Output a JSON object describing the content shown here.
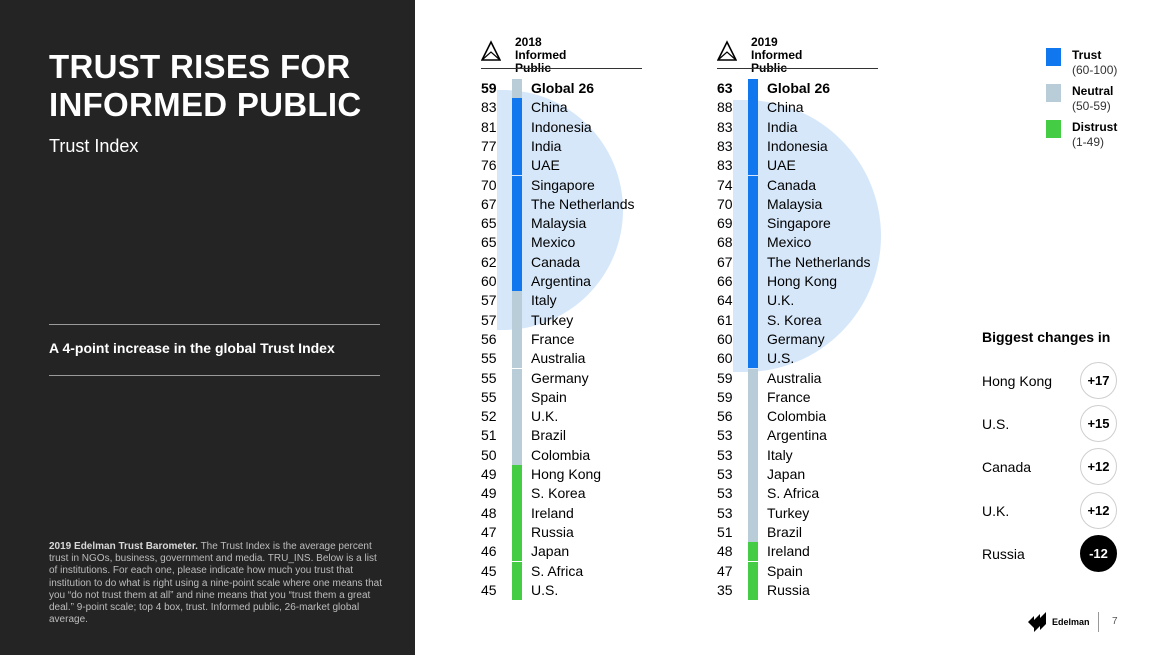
{
  "left_panel": {
    "title": "TRUST RISES FOR INFORMED PUBLIC",
    "subtitle": "Trust Index",
    "callout": "A 4-point increase in the global Trust Index",
    "note_bold": "2019 Edelman Trust Barometer.",
    "note": " The Trust Index is the average percent trust in NGOs, business, government and media. TRU_INS. Below is a list of institutions. For each one, please indicate how much you trust that institution to do what is right using a nine-point scale where one means that you “do not trust them at all” and nine means that you “trust them a great deal.” 9-point scale; top 4 box, trust. Informed public, 26-market global average."
  },
  "colors": {
    "trust": "#1177ee",
    "neutral": "#b9cdd9",
    "distrust": "#44cc44",
    "highlight": "#d6e7fa",
    "dark_panel": "#242424"
  },
  "chart_data": [
    {
      "type": "table",
      "year": "2018",
      "subtitle": "Informed Public",
      "rows": [
        {
          "score": 59,
          "country": "Global 26",
          "category": "neutral"
        },
        {
          "score": 83,
          "country": "China",
          "category": "trust"
        },
        {
          "score": 81,
          "country": "Indonesia",
          "category": "trust"
        },
        {
          "score": 77,
          "country": "India",
          "category": "trust"
        },
        {
          "score": 76,
          "country": "UAE",
          "category": "trust"
        },
        {
          "score": 70,
          "country": "Singapore",
          "category": "trust"
        },
        {
          "score": 67,
          "country": "The Netherlands",
          "category": "trust"
        },
        {
          "score": 65,
          "country": "Malaysia",
          "category": "trust"
        },
        {
          "score": 65,
          "country": "Mexico",
          "category": "trust"
        },
        {
          "score": 62,
          "country": "Canada",
          "category": "trust"
        },
        {
          "score": 60,
          "country": "Argentina",
          "category": "trust"
        },
        {
          "score": 57,
          "country": "Italy",
          "category": "neutral"
        },
        {
          "score": 57,
          "country": "Turkey",
          "category": "neutral"
        },
        {
          "score": 56,
          "country": "France",
          "category": "neutral"
        },
        {
          "score": 55,
          "country": "Australia",
          "category": "neutral"
        },
        {
          "score": 55,
          "country": "Germany",
          "category": "neutral"
        },
        {
          "score": 55,
          "country": "Spain",
          "category": "neutral"
        },
        {
          "score": 52,
          "country": "U.K.",
          "category": "neutral"
        },
        {
          "score": 51,
          "country": "Brazil",
          "category": "neutral"
        },
        {
          "score": 50,
          "country": "Colombia",
          "category": "neutral"
        },
        {
          "score": 49,
          "country": "Hong Kong",
          "category": "distrust"
        },
        {
          "score": 49,
          "country": "S. Korea",
          "category": "distrust"
        },
        {
          "score": 48,
          "country": "Ireland",
          "category": "distrust"
        },
        {
          "score": 47,
          "country": "Russia",
          "category": "distrust"
        },
        {
          "score": 46,
          "country": "Japan",
          "category": "distrust"
        },
        {
          "score": 45,
          "country": "S. Africa",
          "category": "distrust"
        },
        {
          "score": 45,
          "country": "U.S.",
          "category": "distrust"
        }
      ]
    },
    {
      "type": "table",
      "year": "2019",
      "subtitle": "Informed Public",
      "rows": [
        {
          "score": 63,
          "country": "Global 26",
          "category": "trust"
        },
        {
          "score": 88,
          "country": "China",
          "category": "trust"
        },
        {
          "score": 83,
          "country": "India",
          "category": "trust"
        },
        {
          "score": 83,
          "country": "Indonesia",
          "category": "trust"
        },
        {
          "score": 83,
          "country": "UAE",
          "category": "trust"
        },
        {
          "score": 74,
          "country": "Canada",
          "category": "trust"
        },
        {
          "score": 70,
          "country": "Malaysia",
          "category": "trust"
        },
        {
          "score": 69,
          "country": "Singapore",
          "category": "trust"
        },
        {
          "score": 68,
          "country": "Mexico",
          "category": "trust"
        },
        {
          "score": 67,
          "country": "The Netherlands",
          "category": "trust"
        },
        {
          "score": 66,
          "country": "Hong Kong",
          "category": "trust"
        },
        {
          "score": 64,
          "country": "U.K.",
          "category": "trust"
        },
        {
          "score": 61,
          "country": "S. Korea",
          "category": "trust"
        },
        {
          "score": 60,
          "country": "Germany",
          "category": "trust"
        },
        {
          "score": 60,
          "country": "U.S.",
          "category": "trust"
        },
        {
          "score": 59,
          "country": "Australia",
          "category": "neutral"
        },
        {
          "score": 59,
          "country": "France",
          "category": "neutral"
        },
        {
          "score": 56,
          "country": "Colombia",
          "category": "neutral"
        },
        {
          "score": 53,
          "country": "Argentina",
          "category": "neutral"
        },
        {
          "score": 53,
          "country": "Italy",
          "category": "neutral"
        },
        {
          "score": 53,
          "country": "Japan",
          "category": "neutral"
        },
        {
          "score": 53,
          "country": "S. Africa",
          "category": "neutral"
        },
        {
          "score": 53,
          "country": "Turkey",
          "category": "neutral"
        },
        {
          "score": 51,
          "country": "Brazil",
          "category": "neutral"
        },
        {
          "score": 48,
          "country": "Ireland",
          "category": "distrust"
        },
        {
          "score": 47,
          "country": "Spain",
          "category": "distrust"
        },
        {
          "score": 35,
          "country": "Russia",
          "category": "distrust"
        }
      ]
    }
  ],
  "legend": [
    {
      "label": "Trust",
      "range": "(60-100)",
      "category": "trust"
    },
    {
      "label": "Neutral",
      "range": "(50-59)",
      "category": "neutral"
    },
    {
      "label": "Distrust",
      "range": "(1-49)",
      "category": "distrust"
    }
  ],
  "changes": {
    "title": "Biggest changes in",
    "items": [
      {
        "country": "Hong Kong",
        "change": "+17"
      },
      {
        "country": "U.S.",
        "change": "+15"
      },
      {
        "country": "Canada",
        "change": "+12"
      },
      {
        "country": "U.K.",
        "change": "+12"
      },
      {
        "country": "Russia",
        "change": "-12"
      }
    ]
  },
  "footer": {
    "brand": "Edelman",
    "page": "7"
  }
}
